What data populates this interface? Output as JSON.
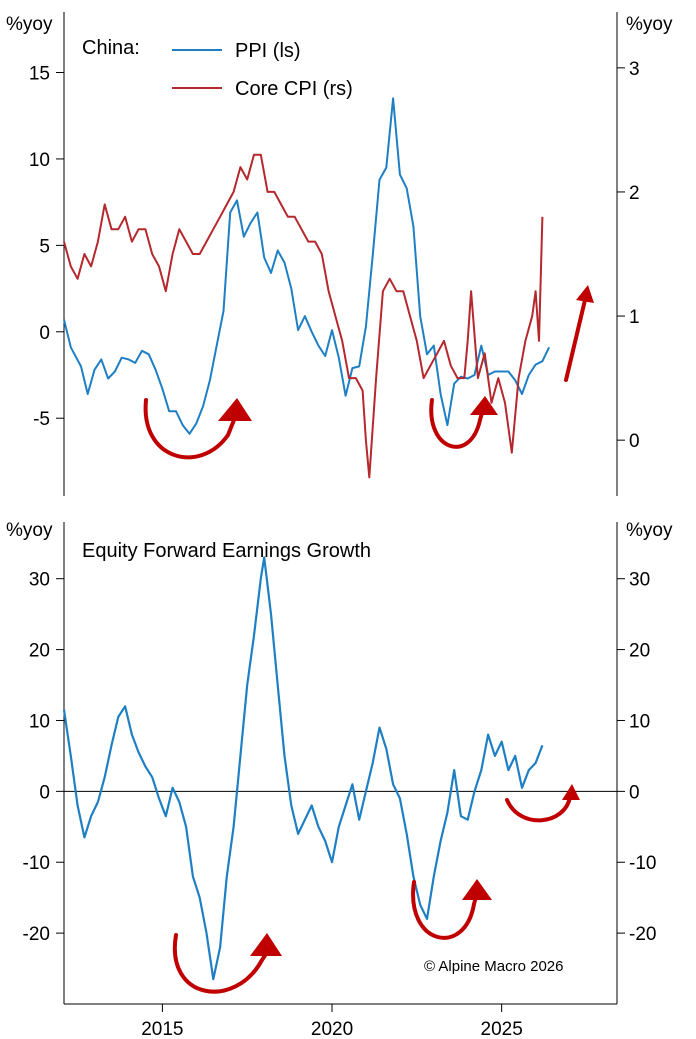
{
  "colors": {
    "ppi": "#1f7fc4",
    "cpi": "#b5282d",
    "earnings": "#1f7fc4",
    "arrow": "#c00000",
    "axis": "#000000"
  },
  "credit": "© Alpine Macro 2026",
  "chart_data": [
    {
      "type": "line",
      "title": "China:",
      "ylabel_left": "%yoy",
      "ylabel_right": "%yoy",
      "xlim": [
        2012.1,
        2028.4
      ],
      "ylim_left": [
        -9.5,
        18.5
      ],
      "ylim_right": [
        -0.45,
        3.45
      ],
      "yticks_left": [
        15,
        10,
        5,
        0,
        -5
      ],
      "yticks_right": [
        3,
        2,
        1,
        0
      ],
      "ytick_labels_left": [
        "15",
        "10",
        "5",
        "0",
        "-5"
      ],
      "ytick_labels_right": [
        "3",
        "2",
        "1",
        "0"
      ],
      "legend": [
        "PPI (ls)",
        "Core CPI (rs)"
      ],
      "legend_position": "top-left",
      "series": [
        {
          "name": "PPI (ls)",
          "axis": "left",
          "x": [
            2012.1,
            2012.3,
            2012.6,
            2012.8,
            2013.0,
            2013.2,
            2013.4,
            2013.6,
            2013.8,
            2014.0,
            2014.2,
            2014.4,
            2014.6,
            2014.8,
            2015.0,
            2015.2,
            2015.4,
            2015.6,
            2015.8,
            2016.0,
            2016.2,
            2016.4,
            2016.6,
            2016.8,
            2017.0,
            2017.2,
            2017.4,
            2017.6,
            2017.8,
            2018.0,
            2018.2,
            2018.4,
            2018.6,
            2018.8,
            2019.0,
            2019.2,
            2019.4,
            2019.6,
            2019.8,
            2020.0,
            2020.2,
            2020.4,
            2020.6,
            2020.8,
            2021.0,
            2021.2,
            2021.4,
            2021.6,
            2021.8,
            2022.0,
            2022.2,
            2022.4,
            2022.6,
            2022.8,
            2023.0,
            2023.2,
            2023.4,
            2023.6,
            2023.8,
            2024.0,
            2024.2,
            2024.4,
            2024.6,
            2024.8,
            2025.0,
            2025.2,
            2025.4,
            2025.6,
            2025.8,
            2026.0,
            2026.2,
            2026.4
          ],
          "y": [
            0.7,
            -0.9,
            -2.0,
            -3.6,
            -2.2,
            -1.6,
            -2.7,
            -2.3,
            -1.5,
            -1.6,
            -1.8,
            -1.1,
            -1.3,
            -2.2,
            -3.3,
            -4.6,
            -4.6,
            -5.4,
            -5.9,
            -5.3,
            -4.3,
            -2.8,
            -0.8,
            1.2,
            6.9,
            7.6,
            5.5,
            6.3,
            6.9,
            4.3,
            3.4,
            4.7,
            4.0,
            2.5,
            0.1,
            0.9,
            0.0,
            -0.8,
            -1.4,
            0.1,
            -1.5,
            -3.7,
            -2.1,
            -2.0,
            0.3,
            4.4,
            8.8,
            9.5,
            13.5,
            9.1,
            8.3,
            6.1,
            0.9,
            -1.3,
            -0.8,
            -3.6,
            -5.4,
            -3.0,
            -2.6,
            -2.7,
            -2.5,
            -0.8,
            -2.5,
            -2.3,
            -2.3,
            -2.3,
            -2.8,
            -3.6,
            -2.5,
            -1.9,
            -1.7,
            -0.9
          ]
        },
        {
          "name": "Core CPI (rs)",
          "axis": "right",
          "x": [
            2012.1,
            2012.3,
            2012.5,
            2012.7,
            2012.9,
            2013.1,
            2013.3,
            2013.5,
            2013.7,
            2013.9,
            2014.1,
            2014.3,
            2014.5,
            2014.7,
            2014.9,
            2015.1,
            2015.3,
            2015.5,
            2015.7,
            2015.9,
            2016.1,
            2016.3,
            2016.5,
            2016.7,
            2016.9,
            2017.1,
            2017.3,
            2017.5,
            2017.7,
            2017.9,
            2018.1,
            2018.3,
            2018.5,
            2018.7,
            2018.9,
            2019.1,
            2019.3,
            2019.5,
            2019.7,
            2019.9,
            2020.1,
            2020.3,
            2020.5,
            2020.7,
            2020.9,
            2021.0,
            2021.1,
            2021.3,
            2021.5,
            2021.7,
            2021.9,
            2022.1,
            2022.3,
            2022.5,
            2022.7,
            2022.9,
            2023.1,
            2023.3,
            2023.5,
            2023.7,
            2023.9,
            2024.0,
            2024.1,
            2024.3,
            2024.5,
            2024.7,
            2024.9,
            2025.1,
            2025.3,
            2025.5,
            2025.7,
            2025.9,
            2026.0,
            2026.1,
            2026.2
          ],
          "y": [
            1.6,
            1.4,
            1.3,
            1.5,
            1.4,
            1.6,
            1.9,
            1.7,
            1.7,
            1.8,
            1.6,
            1.7,
            1.7,
            1.5,
            1.4,
            1.2,
            1.5,
            1.7,
            1.6,
            1.5,
            1.5,
            1.6,
            1.7,
            1.8,
            1.9,
            2.0,
            2.2,
            2.1,
            2.3,
            2.3,
            2.0,
            2.0,
            1.9,
            1.8,
            1.8,
            1.7,
            1.6,
            1.6,
            1.5,
            1.2,
            1.0,
            0.8,
            0.5,
            0.5,
            0.4,
            0.0,
            -0.3,
            0.5,
            1.2,
            1.3,
            1.2,
            1.2,
            1.0,
            0.8,
            0.5,
            0.6,
            0.7,
            0.8,
            0.6,
            0.5,
            0.5,
            0.8,
            1.2,
            0.5,
            0.7,
            0.3,
            0.5,
            0.3,
            -0.1,
            0.5,
            0.8,
            1.0,
            1.2,
            0.8,
            1.8
          ]
        }
      ],
      "xticks": [
        2015,
        2020,
        2025
      ]
    },
    {
      "type": "line",
      "title": "Equity Forward Earnings Growth",
      "ylabel_left": "%yoy",
      "ylabel_right": "%yoy",
      "xlim": [
        2012.1,
        2028.4
      ],
      "ylim": [
        -30,
        38
      ],
      "yticks": [
        30,
        20,
        10,
        0,
        -10,
        -20
      ],
      "ytick_labels": [
        "30",
        "20",
        "10",
        "0",
        "-10",
        "-20"
      ],
      "xticks": [
        2015,
        2020,
        2025
      ],
      "xtick_labels": [
        "2015",
        "2020",
        "2025"
      ],
      "zero_line": true,
      "series": [
        {
          "name": "Equity Forward Earnings Growth",
          "x": [
            2012.1,
            2012.3,
            2012.5,
            2012.7,
            2012.9,
            2013.1,
            2013.3,
            2013.5,
            2013.7,
            2013.9,
            2014.1,
            2014.3,
            2014.5,
            2014.7,
            2014.9,
            2015.1,
            2015.3,
            2015.5,
            2015.7,
            2015.9,
            2016.1,
            2016.3,
            2016.5,
            2016.7,
            2016.9,
            2017.1,
            2017.3,
            2017.5,
            2017.7,
            2017.9,
            2018.0,
            2018.2,
            2018.4,
            2018.6,
            2018.8,
            2019.0,
            2019.2,
            2019.4,
            2019.6,
            2019.8,
            2020.0,
            2020.2,
            2020.4,
            2020.6,
            2020.8,
            2021.0,
            2021.2,
            2021.4,
            2021.6,
            2021.8,
            2022.0,
            2022.2,
            2022.4,
            2022.6,
            2022.8,
            2023.0,
            2023.2,
            2023.4,
            2023.6,
            2023.8,
            2024.0,
            2024.2,
            2024.4,
            2024.6,
            2024.8,
            2025.0,
            2025.2,
            2025.4,
            2025.6,
            2025.8,
            2026.0,
            2026.2
          ],
          "y": [
            11.5,
            5.0,
            -2.0,
            -6.5,
            -3.5,
            -1.5,
            2.0,
            6.5,
            10.5,
            12.0,
            8.0,
            5.5,
            3.5,
            2.0,
            -1.0,
            -3.5,
            0.5,
            -1.5,
            -5.0,
            -12.0,
            -15.0,
            -20.0,
            -26.5,
            -22.0,
            -12.0,
            -5.0,
            5.0,
            15.0,
            22.0,
            30.0,
            33.0,
            25.0,
            15.0,
            5.0,
            -2.0,
            -6.0,
            -4.0,
            -2.0,
            -5.0,
            -7.0,
            -10.0,
            -5.0,
            -2.0,
            1.0,
            -4.0,
            0.0,
            4.0,
            9.0,
            6.0,
            1.0,
            -1.0,
            -6.0,
            -12.0,
            -16.0,
            -18.0,
            -12.0,
            -7.0,
            -3.0,
            3.0,
            -3.5,
            -4.0,
            0.0,
            3.0,
            8.0,
            5.0,
            7.0,
            3.0,
            5.0,
            0.5,
            3.0,
            4.0,
            6.5
          ]
        }
      ]
    }
  ]
}
